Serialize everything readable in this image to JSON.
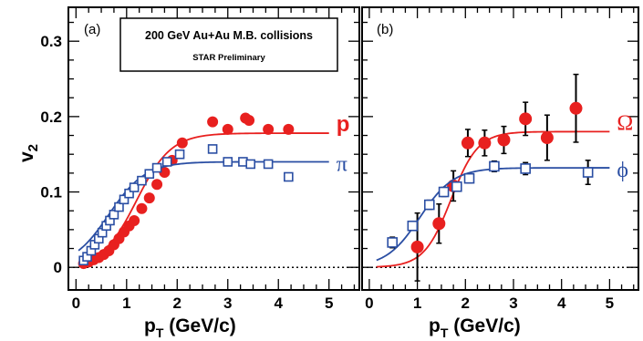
{
  "chart_data": [
    {
      "panel": "(a)",
      "type": "scatter",
      "xlabel_main": "p",
      "xlabel_sub": "T",
      "xlabel_rest": " (GeV/c)",
      "ylabel_main": "v",
      "ylabel_sub": "2",
      "xlim": [
        -0.15,
        5.6
      ],
      "ylim": [
        -0.03,
        0.345
      ],
      "xticks": [
        0,
        1,
        2,
        3,
        4,
        5
      ],
      "yticks": [
        0,
        0.1,
        0.2,
        0.3
      ],
      "ytick_labels": [
        "0",
        "0.1",
        "0.2",
        "0.3"
      ],
      "annotation": {
        "line1": "200 GeV Au+Au M.B. collisions",
        "line2": "STAR Preliminary"
      },
      "grid": false,
      "zero_line": true,
      "series": [
        {
          "name": "p",
          "color": "#e8201f",
          "marker": "filled-circle",
          "x": [
            0.15,
            0.25,
            0.35,
            0.45,
            0.55,
            0.65,
            0.75,
            0.85,
            0.95,
            1.05,
            1.15,
            1.3,
            1.45,
            1.6,
            1.75,
            1.9,
            2.1,
            2.7,
            3.0,
            3.35,
            3.42,
            3.8,
            4.2
          ],
          "y": [
            0.005,
            0.007,
            0.01,
            0.013,
            0.017,
            0.022,
            0.03,
            0.038,
            0.047,
            0.055,
            0.062,
            0.078,
            0.092,
            0.11,
            0.126,
            0.142,
            0.165,
            0.193,
            0.183,
            0.198,
            0.195,
            0.183,
            0.183
          ],
          "fit": {
            "a": 0.178,
            "x0": 1.2,
            "w": 0.34
          }
        },
        {
          "name": "π",
          "color": "#2a4ea3",
          "marker": "open-square",
          "x": [
            0.15,
            0.22,
            0.3,
            0.37,
            0.45,
            0.52,
            0.6,
            0.67,
            0.75,
            0.85,
            0.95,
            1.05,
            1.15,
            1.3,
            1.45,
            1.6,
            1.8,
            2.05,
            2.7,
            3.0,
            3.3,
            3.45,
            3.8,
            4.2
          ],
          "y": [
            0.009,
            0.014,
            0.022,
            0.03,
            0.038,
            0.046,
            0.055,
            0.062,
            0.07,
            0.08,
            0.09,
            0.098,
            0.106,
            0.115,
            0.124,
            0.132,
            0.14,
            0.15,
            0.157,
            0.14,
            0.14,
            0.137,
            0.137,
            0.12
          ],
          "fit": {
            "a": 0.14,
            "x0": 0.65,
            "w": 0.36
          }
        }
      ]
    },
    {
      "panel": "(b)",
      "type": "scatter",
      "xlabel_main": "p",
      "xlabel_sub": "T",
      "xlabel_rest": " (GeV/c)",
      "xlim": [
        -0.15,
        5.6
      ],
      "ylim": [
        -0.03,
        0.345
      ],
      "xticks": [
        0,
        1,
        2,
        3,
        4,
        5
      ],
      "grid": false,
      "zero_line": true,
      "series": [
        {
          "name": "Ω",
          "color": "#e8201f",
          "marker": "filled-circle",
          "x": [
            1.0,
            1.45,
            1.75,
            2.05,
            2.4,
            2.8,
            3.25,
            3.7,
            4.3
          ],
          "y": [
            0.027,
            0.058,
            0.108,
            0.165,
            0.165,
            0.169,
            0.197,
            0.172,
            0.211
          ],
          "yerr": [
            0.045,
            0.026,
            0.02,
            0.018,
            0.017,
            0.018,
            0.022,
            0.03,
            0.045
          ],
          "fit": {
            "a": 0.18,
            "x0": 1.7,
            "w": 0.28
          }
        },
        {
          "name": "ϕ",
          "color": "#2a4ea3",
          "marker": "open-square",
          "x": [
            0.48,
            0.9,
            1.25,
            1.55,
            1.82,
            2.08,
            2.6,
            3.25,
            4.55
          ],
          "y": [
            0.033,
            0.055,
            0.083,
            0.1,
            0.107,
            0.118,
            0.134,
            0.131,
            0.126
          ],
          "yerr": [
            0.007,
            0.006,
            0.006,
            0.006,
            0.006,
            0.006,
            0.007,
            0.008,
            0.016
          ],
          "fit": {
            "a": 0.132,
            "x0": 1.05,
            "w": 0.35
          }
        }
      ]
    }
  ]
}
